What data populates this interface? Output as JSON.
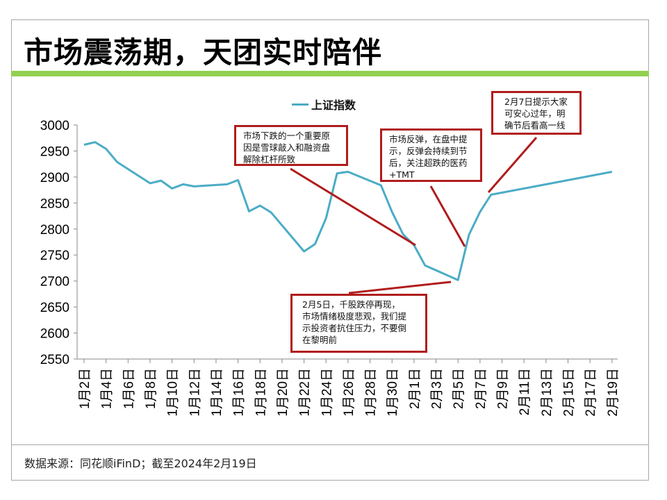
{
  "title": "市场震荡期，天团实时陪伴",
  "footer": "数据来源：同花顺iFinD；截至2024年2月19日",
  "colors": {
    "line": "#4bacc6",
    "accent_bar": "#92d050",
    "annotation": "#b01c1c"
  },
  "chart_data": {
    "type": "line",
    "title": "",
    "xlabel": "",
    "ylabel": "",
    "ylim": [
      2550,
      3000
    ],
    "yticks": [
      3000,
      2950,
      2900,
      2850,
      2800,
      2750,
      2700,
      2650,
      2600,
      2550
    ],
    "xlim_dates": [
      "2024-01-02",
      "2024-02-19"
    ],
    "xtick_labels": [
      "1月2日",
      "1月4日",
      "1月6日",
      "1月8日",
      "1月10日",
      "1月12日",
      "1月14日",
      "1月16日",
      "1月18日",
      "1月20日",
      "1月22日",
      "1月24日",
      "1月26日",
      "1月28日",
      "1月30日",
      "2月1日",
      "2月3日",
      "2月5日",
      "2月7日",
      "2月9日",
      "2月11日",
      "2月13日",
      "2月15日",
      "2月17日",
      "2月19日"
    ],
    "legend": {
      "label": "上证指数",
      "position": "top-center"
    },
    "grid": false,
    "series": [
      {
        "name": "上证指数",
        "day_offsets": [
          0,
          1,
          2,
          3,
          6,
          7,
          8,
          9,
          10,
          13,
          14,
          15,
          16,
          17,
          20,
          21,
          22,
          23,
          24,
          27,
          28,
          29,
          30,
          31,
          34,
          35,
          36,
          37,
          48
        ],
        "dates": [
          "1月2日",
          "1月3日",
          "1月4日",
          "1月5日",
          "1月8日",
          "1月9日",
          "1月10日",
          "1月11日",
          "1月12日",
          "1月15日",
          "1月16日",
          "1月17日",
          "1月18日",
          "1月19日",
          "1月22日",
          "1月23日",
          "1月24日",
          "1月25日",
          "1月26日",
          "1月29日",
          "1月30日",
          "1月31日",
          "2月1日",
          "2月2日",
          "2月5日",
          "2月6日",
          "2月7日",
          "2月8日",
          "2月19日"
        ],
        "values": [
          2962,
          2967,
          2954,
          2929,
          2888,
          2893,
          2878,
          2886,
          2882,
          2886,
          2894,
          2834,
          2845,
          2832,
          2757,
          2771,
          2821,
          2907,
          2910,
          2884,
          2833,
          2790,
          2769,
          2730,
          2702,
          2789,
          2833,
          2866,
          2910
        ]
      }
    ],
    "annotations": [
      {
        "text": "市场下跌的一个重要原\n因是雪球敲入和融资盘\n解除杠杆所致",
        "points_to": "1月31日"
      },
      {
        "text": "市场反弹，在盘中提\n示，反弹会持续到节\n后，关注超跌的医药\n+TMT",
        "points_to": "2月6日"
      },
      {
        "text": "2月7日提示大家\n可安心过年，明\n确节后看高一线",
        "points_to": "2月8日"
      },
      {
        "text": "2月5日，千股跌停再现，\n市场情绪极度悲观，我们提\n示投资者抗住压力，不要倒\n在黎明前",
        "points_to": "2月5日"
      }
    ]
  }
}
